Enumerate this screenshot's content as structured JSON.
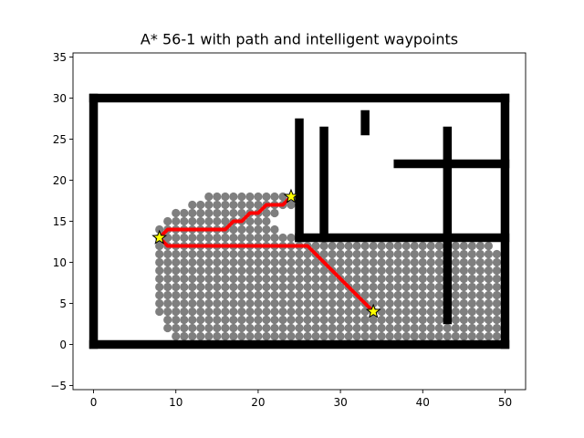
{
  "chart_data": {
    "type": "scatter",
    "title": "A* 56-1 with path and intelligent waypoints",
    "xlabel": "",
    "ylabel": "",
    "xlim": [
      -2.5,
      52.5
    ],
    "ylim": [
      -5.5,
      35.5
    ],
    "x_ticks": [
      0,
      10,
      20,
      30,
      40,
      50
    ],
    "y_ticks": [
      -5,
      0,
      5,
      10,
      15,
      20,
      25,
      30,
      35
    ],
    "grid": false,
    "colors": {
      "obstacle": "#000000",
      "explored": "#7f7f7f",
      "path": "#ff0000",
      "waypoint_fill": "#ffff00",
      "waypoint_edge": "#000000"
    },
    "obstacles": [
      {
        "name": "outer-bottom-wall",
        "x": [
          0,
          50
        ],
        "y": [
          0,
          0
        ]
      },
      {
        "name": "outer-top-wall",
        "x": [
          0,
          50
        ],
        "y": [
          30,
          30
        ]
      },
      {
        "name": "outer-left-wall",
        "x": [
          0,
          0
        ],
        "y": [
          0,
          30
        ]
      },
      {
        "name": "outer-right-wall",
        "x": [
          50,
          50
        ],
        "y": [
          0,
          30
        ]
      },
      {
        "name": "wall-x25",
        "x": [
          25,
          25
        ],
        "y": [
          13,
          27
        ]
      },
      {
        "name": "wall-x28",
        "x": [
          28,
          28
        ],
        "y": [
          13,
          26
        ]
      },
      {
        "name": "wall-x33",
        "x": [
          33,
          33
        ],
        "y": [
          26,
          28
        ]
      },
      {
        "name": "wall-x43",
        "x": [
          43,
          43
        ],
        "y": [
          3,
          26
        ]
      },
      {
        "name": "wall-y22",
        "x": [
          37,
          50
        ],
        "y": [
          22,
          22
        ]
      },
      {
        "name": "wall-y13",
        "x": [
          25,
          50
        ],
        "y": [
          13,
          13
        ]
      }
    ],
    "explored_rows": [
      {
        "y": 1,
        "x_min": 10,
        "x_max": 49
      },
      {
        "y": 2,
        "x_min": 9,
        "x_max": 49
      },
      {
        "y": 3,
        "x_min": 9,
        "x_max": 49
      },
      {
        "y": 4,
        "x_min": 8,
        "x_max": 49
      },
      {
        "y": 5,
        "x_min": 8,
        "x_max": 49
      },
      {
        "y": 6,
        "x_min": 8,
        "x_max": 49
      },
      {
        "y": 7,
        "x_min": 8,
        "x_max": 49
      },
      {
        "y": 8,
        "x_min": 8,
        "x_max": 49
      },
      {
        "y": 9,
        "x_min": 8,
        "x_max": 49
      },
      {
        "y": 10,
        "x_min": 8,
        "x_max": 49
      },
      {
        "y": 11,
        "x_min": 8,
        "x_max": 49
      },
      {
        "y": 12,
        "x_min": 8,
        "x_max": 48
      },
      {
        "y": 13,
        "x_min": 8,
        "x_max": 24
      },
      {
        "y": 14,
        "x_min": 8,
        "x_max": 22
      },
      {
        "y": 15,
        "x_min": 9,
        "x_max": 21
      },
      {
        "y": 16,
        "x_min": 10,
        "x_max": 22
      },
      {
        "y": 17,
        "x_min": 12,
        "x_max": 24
      },
      {
        "y": 18,
        "x_min": 14,
        "x_max": 23
      }
    ],
    "path": [
      {
        "x": 24,
        "y": 18
      },
      {
        "x": 23,
        "y": 17
      },
      {
        "x": 21,
        "y": 17
      },
      {
        "x": 20,
        "y": 16
      },
      {
        "x": 19,
        "y": 16
      },
      {
        "x": 18,
        "y": 15
      },
      {
        "x": 17,
        "y": 15
      },
      {
        "x": 16,
        "y": 14
      },
      {
        "x": 9,
        "y": 14
      },
      {
        "x": 8,
        "y": 13
      },
      {
        "x": 9,
        "y": 12
      },
      {
        "x": 26,
        "y": 12
      },
      {
        "x": 34,
        "y": 4
      }
    ],
    "waypoints": [
      {
        "x": 24,
        "y": 18
      },
      {
        "x": 8,
        "y": 13
      },
      {
        "x": 34,
        "y": 4
      }
    ]
  }
}
